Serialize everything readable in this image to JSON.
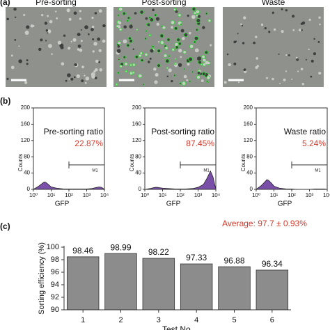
{
  "panel_labels": [
    "(a)",
    "(b)",
    "(c)"
  ],
  "images": [
    {
      "title": "Pre-sorting"
    },
    {
      "title": "Post-sorting"
    },
    {
      "title": "Waste"
    }
  ],
  "chart_data": [
    {
      "type": "area",
      "title": "Pre-sorting ratio",
      "annotation": "22.87%",
      "ylabel": "Counts",
      "xlabel": "GFP",
      "x": [
        1,
        2,
        3,
        4,
        5,
        7,
        10,
        20,
        50,
        100,
        200,
        500,
        1000,
        2000,
        3000,
        5000,
        7000,
        10000
      ],
      "values": [
        0,
        8,
        14,
        18,
        17,
        12,
        6,
        3,
        1,
        1,
        1,
        1,
        1,
        2,
        4,
        6,
        5,
        0
      ],
      "color": "#7a4fa8",
      "log_x": true,
      "xlim": [
        1,
        10000
      ],
      "ylim": [
        0,
        200
      ],
      "yticks": [
        0,
        40,
        80,
        120,
        160,
        200
      ],
      "xticks": [
        {
          "value": 1,
          "label": "10⁰"
        },
        {
          "value": 10,
          "label": "10¹"
        },
        {
          "value": 100,
          "label": "10²"
        },
        {
          "value": 1000,
          "label": "10³"
        },
        {
          "value": 10000,
          "label": "10⁴"
        }
      ],
      "gate": {
        "label": "M1",
        "x": [
          100,
          10000
        ],
        "y": 60
      }
    },
    {
      "type": "area",
      "title": "Post-sorting ratio",
      "annotation": "87.45%",
      "ylabel": "Counts",
      "xlabel": "GFP",
      "x": [
        1,
        2,
        3,
        4,
        5,
        7,
        10,
        20,
        50,
        100,
        200,
        500,
        1000,
        2000,
        3000,
        5000,
        7000,
        10000
      ],
      "values": [
        0,
        2,
        4,
        5,
        5,
        4,
        3,
        2,
        1,
        1,
        1,
        2,
        5,
        12,
        25,
        45,
        30,
        0
      ],
      "color": "#7a4fa8",
      "log_x": true,
      "xlim": [
        1,
        10000
      ],
      "ylim": [
        0,
        200
      ],
      "yticks": [
        0,
        40,
        80,
        120,
        160,
        200
      ],
      "xticks": [
        {
          "value": 1,
          "label": "10⁰"
        },
        {
          "value": 10,
          "label": "10¹"
        },
        {
          "value": 100,
          "label": "10²"
        },
        {
          "value": 1000,
          "label": "10³"
        },
        {
          "value": 10000,
          "label": "10⁴"
        }
      ],
      "gate": {
        "label": "M1",
        "x": [
          100,
          10000
        ],
        "y": 60
      }
    },
    {
      "type": "area",
      "title": "Waste ratio",
      "annotation": "5.24%",
      "ylabel": "Counts",
      "xlabel": "GFP",
      "x": [
        1,
        2,
        3,
        4,
        5,
        7,
        10,
        20,
        50,
        100,
        200,
        500,
        1000,
        2000,
        3000,
        5000,
        7000,
        10000
      ],
      "values": [
        0,
        10,
        18,
        24,
        22,
        16,
        8,
        3,
        1,
        1,
        0,
        0,
        0,
        1,
        1,
        1,
        1,
        0
      ],
      "color": "#7a4fa8",
      "log_x": true,
      "xlim": [
        1,
        10000
      ],
      "ylim": [
        0,
        200
      ],
      "yticks": [
        0,
        40,
        80,
        120,
        160,
        200
      ],
      "xticks": [
        {
          "value": 1,
          "label": "10⁰"
        },
        {
          "value": 10,
          "label": "10¹"
        },
        {
          "value": 100,
          "label": "10²"
        },
        {
          "value": 1000,
          "label": "10³"
        },
        {
          "value": 10000,
          "label": "10⁴"
        }
      ],
      "gate": {
        "label": "M1",
        "x": [
          100,
          10000
        ],
        "y": 60
      }
    },
    {
      "type": "bar",
      "annotation": "Average: 97.7 ± 0.93%",
      "ylabel": "Sorting efficiency (%)",
      "xlabel": "Test No.",
      "categories": [
        "1",
        "2",
        "3",
        "4",
        "5",
        "6"
      ],
      "values": [
        98.46,
        98.99,
        98.22,
        97.33,
        96.88,
        96.34
      ],
      "color": "#8c8c8c",
      "ylim": [
        90,
        100
      ],
      "yticks": [
        90,
        92,
        94,
        96,
        98,
        100
      ]
    }
  ]
}
